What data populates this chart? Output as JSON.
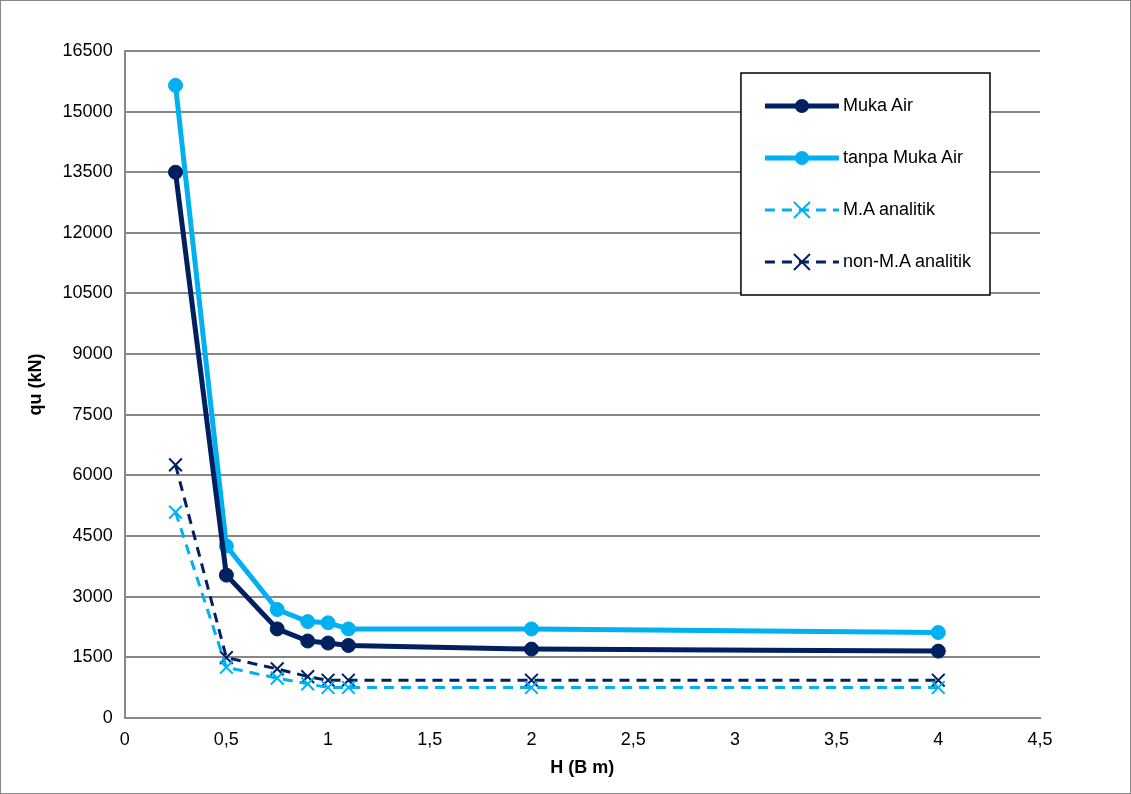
{
  "chart_data": {
    "type": "line",
    "xlabel": "H (B m)",
    "ylabel": "qu (kN)",
    "xlim": [
      0,
      4.5
    ],
    "xticks": [
      0,
      {
        "value": 0.5,
        "label": "0,5"
      },
      1,
      {
        "value": 1.5,
        "label": "1,5"
      },
      2,
      {
        "value": 2.5,
        "label": "2,5"
      },
      3,
      {
        "value": 3.5,
        "label": "3,5"
      },
      4,
      {
        "value": 4.5,
        "label": "4,5"
      }
    ],
    "ylim": [
      0,
      16500
    ],
    "yticks": [
      0,
      1500,
      3000,
      4500,
      6000,
      7500,
      9000,
      10500,
      12000,
      13500,
      15000,
      16500
    ],
    "grid": "y",
    "legend": "top right",
    "x": [
      0.25,
      0.5,
      0.75,
      0.9,
      1,
      1.1,
      2,
      4
    ],
    "series": [
      {
        "name": "Muka Air",
        "color": "#002060",
        "marker": "circle",
        "line_style": "solid",
        "values": [
          13500,
          3530,
          2200,
          1900,
          1850,
          1790,
          1700,
          1650
        ]
      },
      {
        "name": "tanpa Muka Air",
        "color": "#00b0f0",
        "marker": "circle",
        "line_style": "solid",
        "values": [
          15650,
          4250,
          2680,
          2380,
          2350,
          2200,
          2200,
          2110
        ]
      },
      {
        "name": "M.A analitik",
        "color": "#00b0f0",
        "marker": "cross",
        "line_style": "dashed",
        "values": [
          5090,
          1250,
          980,
          840,
          750,
          750,
          750,
          750
        ]
      },
      {
        "name": "non-M.A analitik",
        "color": "#002060",
        "marker": "cross",
        "line_style": "dashed",
        "values": [
          6260,
          1490,
          1210,
          1020,
          930,
          930,
          930,
          930
        ]
      }
    ]
  }
}
